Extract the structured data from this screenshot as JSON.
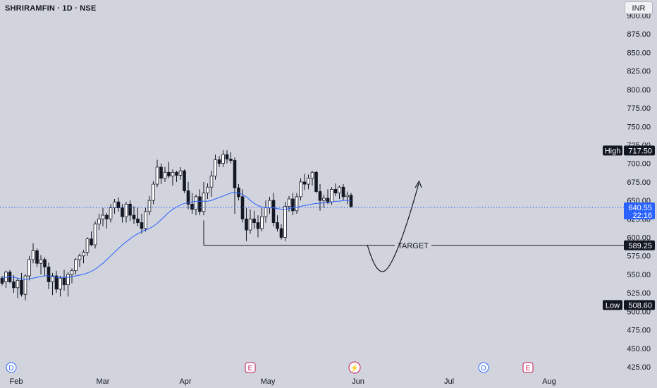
{
  "header": {
    "title": "SHRIRAMFIN · 1D · NSE",
    "currency": "INR"
  },
  "axis": {
    "y_ticks": [
      "900.00",
      "875.00",
      "850.00",
      "825.00",
      "800.00",
      "775.00",
      "750.00",
      "725.00",
      "700.00",
      "675.00",
      "650.00",
      "625.00",
      "600.00",
      "575.00",
      "550.00",
      "525.00",
      "500.00",
      "475.00",
      "450.00",
      "425.00"
    ],
    "x_ticks": [
      "Feb",
      "Mar",
      "Apr",
      "May",
      "Jun",
      "Jul",
      "Aug"
    ]
  },
  "labels": {
    "high_label": "High",
    "high_value": "717.50",
    "low_label": "Low",
    "low_value": "508.60",
    "last_price": "640.55",
    "countdown": "22:16",
    "target_value": "589.25",
    "target_text": "TARGET"
  },
  "events": [
    {
      "type": "D",
      "date": "Feb"
    },
    {
      "type": "E",
      "date": "Apr"
    },
    {
      "type": "⚡",
      "date": "May"
    },
    {
      "type": "D",
      "date": "Jul"
    },
    {
      "type": "E",
      "date": "Jul"
    }
  ],
  "colors": {
    "background": "#d1d4dc",
    "up": "#ffffff",
    "down": "#131722",
    "ma": "#2962ff",
    "last_price": "#2962ff"
  },
  "chart_data": {
    "type": "candlestick",
    "symbol": "SHRIRAMFIN",
    "interval": "1D",
    "exchange": "NSE",
    "y_range": [
      415,
      905
    ],
    "ohlc": [
      [
        545,
        548,
        535,
        538
      ],
      [
        540,
        555,
        532,
        553
      ],
      [
        553,
        556,
        538,
        540
      ],
      [
        540,
        549,
        525,
        532
      ],
      [
        532,
        545,
        518,
        542
      ],
      [
        542,
        552,
        520,
        523
      ],
      [
        523,
        550,
        515,
        548
      ],
      [
        548,
        575,
        542,
        570
      ],
      [
        570,
        592,
        565,
        582
      ],
      [
        582,
        585,
        560,
        565
      ],
      [
        565,
        576,
        550,
        570
      ],
      [
        570,
        573,
        548,
        560
      ],
      [
        560,
        566,
        530,
        540
      ],
      [
        540,
        552,
        522,
        548
      ],
      [
        548,
        555,
        525,
        530
      ],
      [
        530,
        548,
        520,
        545
      ],
      [
        545,
        556,
        528,
        536
      ],
      [
        536,
        553,
        520,
        550
      ],
      [
        550,
        558,
        538,
        555
      ],
      [
        555,
        572,
        550,
        570
      ],
      [
        570,
        578,
        560,
        575
      ],
      [
        575,
        583,
        565,
        580
      ],
      [
        580,
        600,
        575,
        598
      ],
      [
        598,
        608,
        588,
        590
      ],
      [
        590,
        622,
        585,
        618
      ],
      [
        618,
        632,
        610,
        625
      ],
      [
        625,
        640,
        615,
        630
      ],
      [
        630,
        633,
        612,
        625
      ],
      [
        625,
        645,
        620,
        640
      ],
      [
        640,
        652,
        632,
        648
      ],
      [
        648,
        654,
        635,
        640
      ],
      [
        640,
        645,
        620,
        628
      ],
      [
        628,
        648,
        620,
        645
      ],
      [
        645,
        650,
        622,
        630
      ],
      [
        630,
        642,
        618,
        625
      ],
      [
        625,
        640,
        615,
        620
      ],
      [
        620,
        632,
        605,
        612
      ],
      [
        612,
        640,
        608,
        635
      ],
      [
        635,
        656,
        630,
        650
      ],
      [
        650,
        676,
        645,
        672
      ],
      [
        672,
        705,
        668,
        695
      ],
      [
        695,
        700,
        672,
        680
      ],
      [
        680,
        695,
        675,
        688
      ],
      [
        688,
        702,
        680,
        683
      ],
      [
        683,
        692,
        670,
        688
      ],
      [
        688,
        690,
        675,
        684
      ],
      [
        684,
        695,
        678,
        690
      ],
      [
        690,
        692,
        660,
        663
      ],
      [
        663,
        675,
        638,
        645
      ],
      [
        645,
        660,
        632,
        638
      ],
      [
        638,
        658,
        630,
        655
      ],
      [
        655,
        665,
        630,
        635
      ],
      [
        635,
        675,
        630,
        660
      ],
      [
        660,
        673,
        652,
        668
      ],
      [
        668,
        690,
        655,
        683
      ],
      [
        683,
        712,
        678,
        705
      ],
      [
        705,
        710,
        695,
        700
      ],
      [
        700,
        718,
        695,
        712
      ],
      [
        712,
        718,
        700,
        706
      ],
      [
        706,
        715,
        700,
        704
      ],
      [
        704,
        708,
        632,
        667
      ],
      [
        667,
        672,
        650,
        655
      ],
      [
        655,
        665,
        620,
        625
      ],
      [
        625,
        640,
        595,
        610
      ],
      [
        610,
        638,
        605,
        625
      ],
      [
        625,
        636,
        612,
        620
      ],
      [
        620,
        630,
        600,
        612
      ],
      [
        612,
        640,
        608,
        628
      ],
      [
        628,
        650,
        620,
        640
      ],
      [
        640,
        655,
        632,
        650
      ],
      [
        650,
        660,
        615,
        620
      ],
      [
        620,
        630,
        608,
        612
      ],
      [
        612,
        618,
        597,
        600
      ],
      [
        600,
        648,
        595,
        642
      ],
      [
        642,
        656,
        635,
        652
      ],
      [
        652,
        660,
        630,
        636
      ],
      [
        636,
        660,
        632,
        655
      ],
      [
        655,
        680,
        650,
        675
      ],
      [
        675,
        686,
        664,
        672
      ],
      [
        672,
        685,
        665,
        680
      ],
      [
        680,
        690,
        670,
        688
      ],
      [
        688,
        690,
        660,
        662
      ],
      [
        662,
        672,
        636,
        650
      ],
      [
        650,
        658,
        640,
        653
      ],
      [
        653,
        665,
        645,
        648
      ],
      [
        648,
        668,
        644,
        665
      ],
      [
        665,
        673,
        656,
        660
      ],
      [
        660,
        670,
        652,
        668
      ],
      [
        668,
        672,
        650,
        655
      ],
      [
        655,
        662,
        645,
        657
      ],
      [
        657,
        660,
        640,
        642
      ]
    ],
    "ma": [
      545,
      546,
      547,
      546,
      545,
      544,
      543,
      544,
      545,
      546,
      547,
      548,
      548,
      547,
      546,
      546,
      546,
      546,
      547,
      548,
      549,
      550,
      552,
      554,
      557,
      561,
      565,
      570,
      575,
      580,
      585,
      590,
      594,
      598,
      602,
      605,
      608,
      610,
      612,
      615,
      619,
      624,
      629,
      634,
      638,
      641,
      644,
      646,
      647,
      648,
      649,
      649,
      649,
      649,
      650,
      652,
      654,
      656,
      658,
      660,
      661,
      660,
      658,
      655,
      650,
      646,
      643,
      641,
      640,
      640,
      640,
      639,
      638,
      638,
      639,
      640,
      641,
      642,
      643,
      644,
      645,
      646,
      646,
      647,
      647,
      648,
      649,
      649,
      650,
      650,
      650
    ],
    "high": 717.5,
    "low": 508.6,
    "last": 640.55,
    "target": 589.25,
    "projection": [
      [
        651,
        589.25
      ],
      [
        667,
        560
      ],
      [
        693,
        555
      ],
      [
        712,
        585
      ],
      [
        740,
        640
      ],
      [
        760,
        672
      ]
    ]
  }
}
